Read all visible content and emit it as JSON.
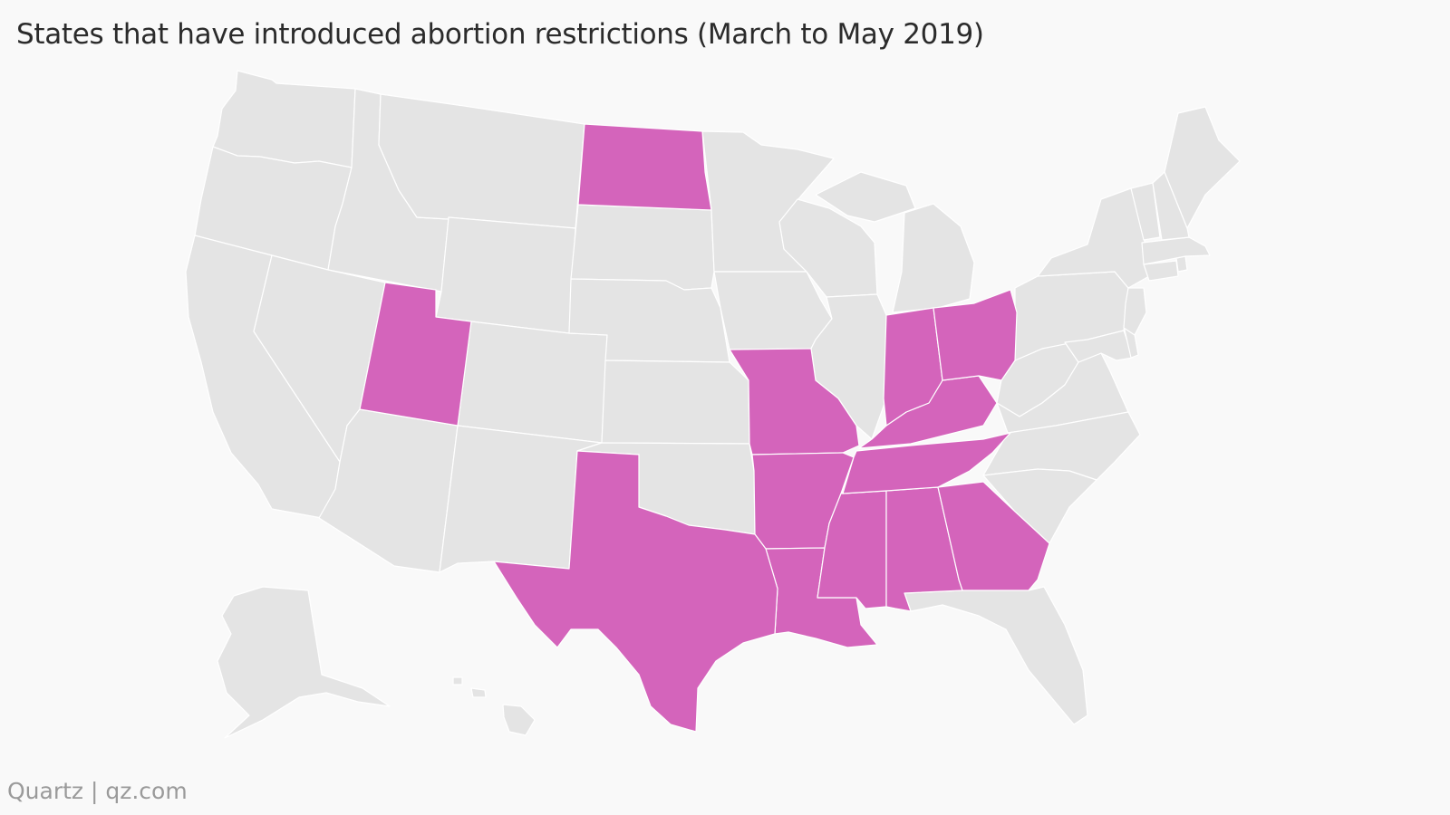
{
  "title": "States that have introduced abortion restrictions (March to May 2019)",
  "source": "Quartz | qz.com",
  "colors": {
    "background": "#f9f9f9",
    "highlight": "#d464bb",
    "base": "#e4e4e4",
    "border": "#ffffff"
  },
  "chart_data": {
    "type": "choropleth",
    "region": "United States",
    "highlighted_states": [
      "Utah",
      "North Dakota",
      "Missouri",
      "Arkansas",
      "Louisiana",
      "Texas",
      "Mississippi",
      "Alabama",
      "Georgia",
      "Tennessee",
      "Kentucky",
      "Indiana",
      "Ohio"
    ],
    "other_states": [
      "Washington",
      "Oregon",
      "California",
      "Idaho",
      "Nevada",
      "Montana",
      "Wyoming",
      "Colorado",
      "Arizona",
      "New Mexico",
      "South Dakota",
      "Nebraska",
      "Kansas",
      "Oklahoma",
      "Minnesota",
      "Iowa",
      "Wisconsin",
      "Illinois",
      "Michigan",
      "Florida",
      "South Carolina",
      "North Carolina",
      "Virginia",
      "West Virginia",
      "Pennsylvania",
      "New York",
      "Maryland",
      "Delaware",
      "New Jersey",
      "Connecticut",
      "Rhode Island",
      "Massachusetts",
      "Vermont",
      "New Hampshire",
      "Maine",
      "Alaska",
      "Hawaii"
    ]
  }
}
